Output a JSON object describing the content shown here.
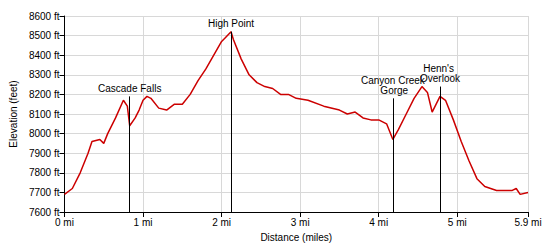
{
  "chart_data": {
    "type": "line",
    "x_label": "Distance (miles)",
    "y_label": "Elevation (feet)",
    "x": [
      0,
      0.1,
      0.2,
      0.3,
      0.35,
      0.45,
      0.5,
      0.55,
      0.65,
      0.75,
      0.8,
      0.83,
      0.9,
      0.95,
      1.0,
      1.05,
      1.1,
      1.2,
      1.3,
      1.4,
      1.5,
      1.6,
      1.7,
      1.8,
      1.9,
      2.0,
      2.05,
      2.12,
      2.15,
      2.25,
      2.35,
      2.45,
      2.55,
      2.65,
      2.75,
      2.85,
      2.95,
      3.1,
      3.3,
      3.5,
      3.6,
      3.7,
      3.8,
      3.9,
      4.0,
      4.1,
      4.18,
      4.25,
      4.35,
      4.45,
      4.55,
      4.62,
      4.68,
      4.78,
      4.85,
      4.95,
      5.05,
      5.15,
      5.25,
      5.35,
      5.5,
      5.7,
      5.75,
      5.8,
      5.9
    ],
    "values": [
      7690,
      7720,
      7800,
      7900,
      7960,
      7970,
      7950,
      8000,
      8080,
      8170,
      8140,
      8040,
      8080,
      8120,
      8170,
      8190,
      8180,
      8130,
      8120,
      8150,
      8150,
      8200,
      8270,
      8330,
      8400,
      8470,
      8490,
      8520,
      8480,
      8380,
      8300,
      8260,
      8240,
      8230,
      8200,
      8200,
      8180,
      8170,
      8140,
      8120,
      8100,
      8110,
      8080,
      8070,
      8070,
      8050,
      7970,
      8020,
      8100,
      8180,
      8240,
      8210,
      8110,
      8190,
      8170,
      8070,
      7960,
      7860,
      7770,
      7730,
      7710,
      7710,
      7720,
      7690,
      7700
    ],
    "color": "#cc0000",
    "xlim": [
      0,
      5.9
    ],
    "xticks": [
      {
        "value": 0,
        "label": "0 mi"
      },
      {
        "value": 1,
        "label": "1 mi"
      },
      {
        "value": 2,
        "label": "2 mi"
      },
      {
        "value": 3,
        "label": "3 mi"
      },
      {
        "value": 4,
        "label": "4 mi"
      },
      {
        "value": 5,
        "label": "5 mi"
      },
      {
        "value": 5.9,
        "label": "5.9 mi"
      }
    ],
    "ylim": [
      7600,
      8600
    ],
    "yticks": [
      {
        "value": 7600,
        "label": "7600 ft"
      },
      {
        "value": 7700,
        "label": "7700 ft"
      },
      {
        "value": 7800,
        "label": "7800 ft"
      },
      {
        "value": 7900,
        "label": "7900 ft"
      },
      {
        "value": 8000,
        "label": "8000 ft"
      },
      {
        "value": 8100,
        "label": "8100 ft"
      },
      {
        "value": 8200,
        "label": "8200 ft"
      },
      {
        "value": 8300,
        "label": "8300 ft"
      },
      {
        "value": 8400,
        "label": "8400 ft"
      },
      {
        "value": 8500,
        "label": "8500 ft"
      },
      {
        "value": 8600,
        "label": "8600 ft"
      }
    ],
    "annotations": [
      {
        "label": "Cascade Falls",
        "x": 0.83
      },
      {
        "label": "High Point",
        "x": 2.12
      },
      {
        "label": "Canyon Creek Gorge",
        "x": 4.18
      },
      {
        "label": "Henn's Overlook",
        "x": 4.78
      }
    ],
    "grid": true
  }
}
